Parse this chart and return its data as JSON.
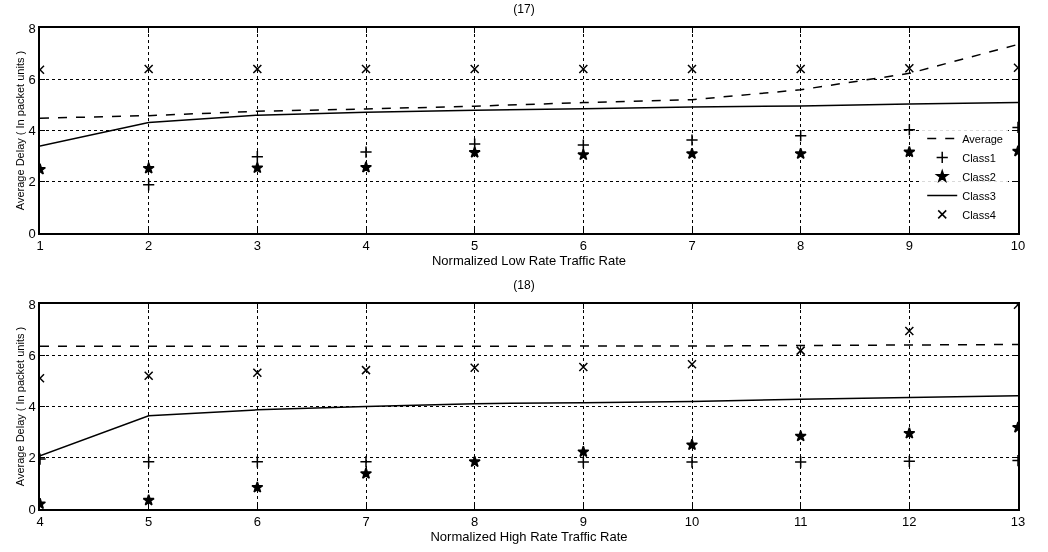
{
  "chart_data": [
    {
      "type": "line",
      "title": "(17)",
      "xlabel": "Normalized Low Rate Traffic Rate",
      "ylabel": "Average Delay ( In packet units )",
      "x": [
        1,
        2,
        3,
        4,
        5,
        6,
        7,
        8,
        9,
        10
      ],
      "xlim": [
        1,
        10
      ],
      "xticks": [
        1,
        2,
        3,
        4,
        5,
        6,
        7,
        8,
        9,
        10
      ],
      "ylim": [
        0,
        8
      ],
      "yticks": [
        0,
        2,
        4,
        6,
        8
      ],
      "grid": true,
      "legend": "bottom right",
      "series": [
        {
          "name": "Average",
          "line_style": "dashed",
          "marker": "none",
          "color": "#000000",
          "values": [
            4.48,
            4.58,
            4.75,
            4.84,
            4.95,
            5.09,
            5.2,
            5.59,
            6.23,
            7.36
          ]
        },
        {
          "name": "Class1",
          "type": "scatter",
          "marker": "cross",
          "color": "#000000",
          "values": [
            null,
            1.88,
            2.98,
            3.16,
            3.47,
            3.43,
            3.63,
            3.8,
            4.03,
            4.12
          ]
        },
        {
          "name": "Class2",
          "type": "scatter",
          "marker": "star",
          "color": "#000000",
          "values": [
            2.48,
            2.52,
            2.54,
            2.56,
            3.14,
            3.05,
            3.09,
            3.09,
            3.16,
            3.19
          ]
        },
        {
          "name": "Class3",
          "line_style": "solid",
          "marker": "none",
          "color": "#000000",
          "values": [
            3.39,
            4.31,
            4.6,
            4.71,
            4.79,
            4.85,
            4.92,
            4.96,
            5.03,
            5.09
          ]
        },
        {
          "name": "Class4",
          "type": "scatter",
          "marker": "x",
          "color": "#000000",
          "values": [
            6.37,
            6.4,
            6.4,
            6.4,
            6.4,
            6.4,
            6.4,
            6.4,
            6.43,
            6.45
          ]
        }
      ]
    },
    {
      "type": "line",
      "title": "(18)",
      "xlabel": "Normalized High Rate Traffic Rate",
      "ylabel": "Average Delay ( In packet units )",
      "x": [
        4,
        5,
        6,
        7,
        8,
        9,
        10,
        11,
        12,
        13
      ],
      "xlim": [
        4,
        13
      ],
      "xticks": [
        4,
        5,
        6,
        7,
        8,
        9,
        10,
        11,
        12,
        13
      ],
      "ylim": [
        0,
        8
      ],
      "yticks": [
        0,
        2,
        4,
        6,
        8
      ],
      "grid": true,
      "legend": false,
      "series": [
        {
          "line_style": "dashed",
          "marker": "none",
          "color": "#000000",
          "values": [
            6.35,
            6.35,
            6.35,
            6.35,
            6.35,
            6.36,
            6.36,
            6.38,
            6.4,
            6.42
          ]
        },
        {
          "type": "scatter",
          "marker": "cross",
          "color": "#000000",
          "values": [
            1.95,
            1.84,
            1.84,
            1.84,
            null,
            1.83,
            1.83,
            1.83,
            1.86,
            1.89
          ]
        },
        {
          "type": "scatter",
          "marker": "star",
          "color": "#000000",
          "values": [
            0.2,
            0.34,
            0.84,
            1.38,
            1.84,
            2.23,
            2.5,
            2.84,
            2.95,
            3.18
          ]
        },
        {
          "line_style": "solid",
          "marker": "none",
          "color": "#000000",
          "values": [
            2.08,
            3.64,
            3.87,
            4.0,
            4.11,
            4.15,
            4.2,
            4.28,
            4.35,
            4.42
          ]
        },
        {
          "type": "scatter",
          "marker": "x",
          "color": "#000000",
          "values": [
            5.1,
            5.2,
            5.32,
            5.42,
            5.51,
            5.54,
            5.65,
            6.18,
            6.95,
            7.97
          ]
        }
      ]
    }
  ]
}
